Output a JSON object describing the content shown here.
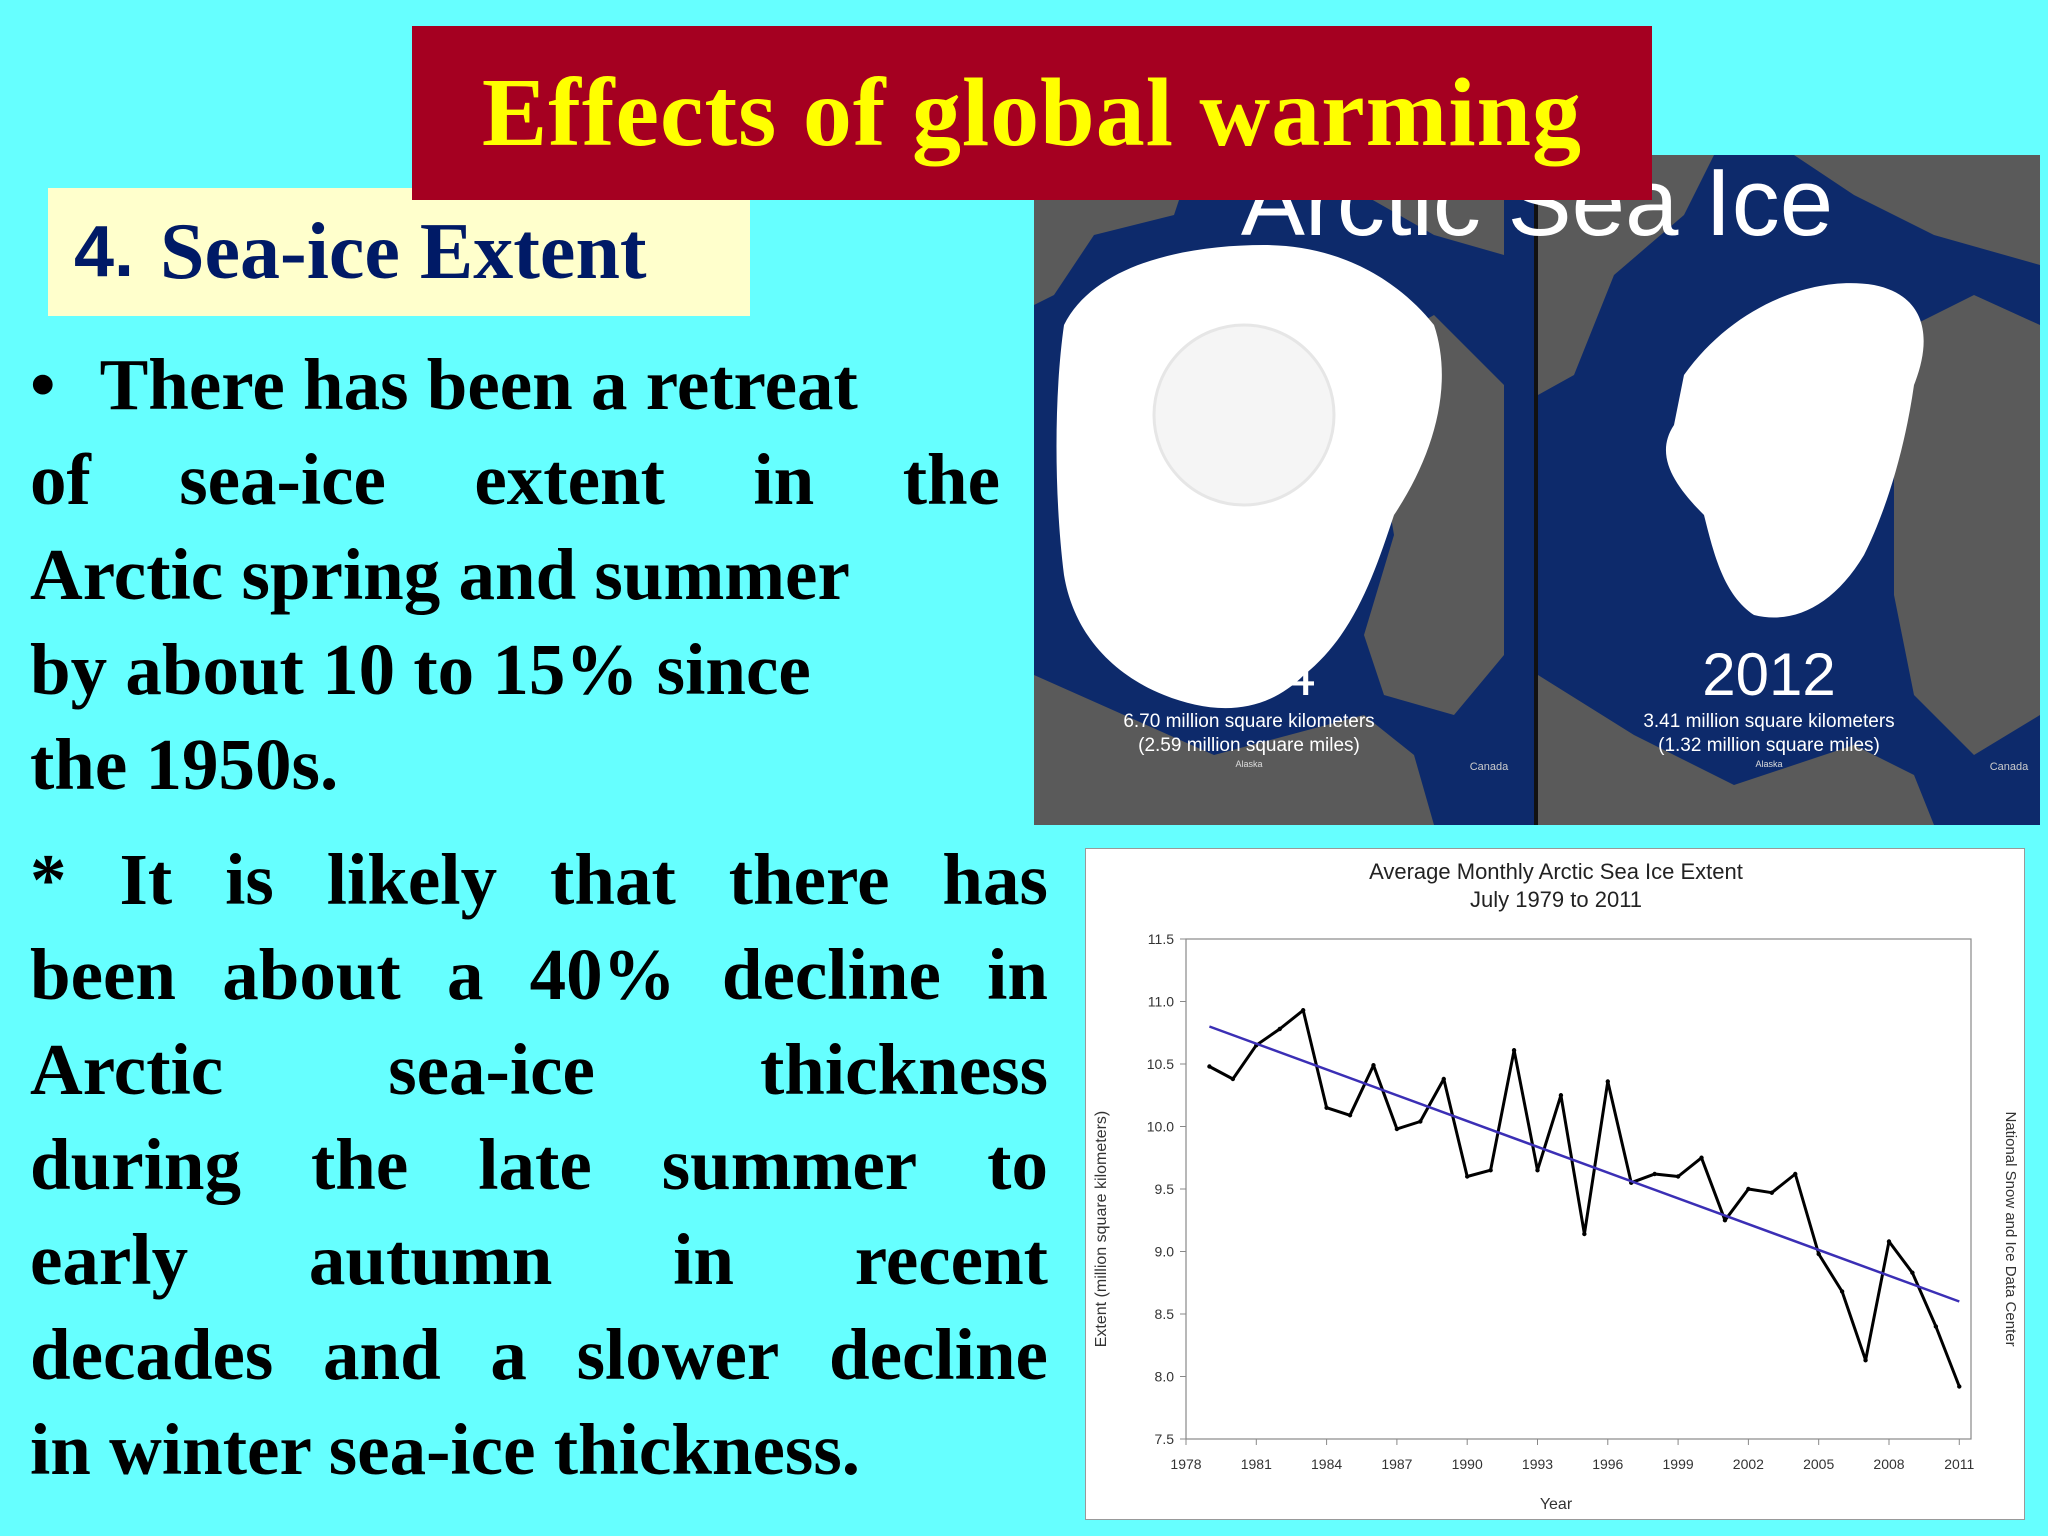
{
  "slide": {
    "title": "Effects of global warming",
    "section_number": "4.",
    "section_title": "Sea-ice Extent",
    "bullet_symbol": "•",
    "paragraph1_lines": [
      [
        "There has been a retreat"
      ],
      [
        "of",
        "sea-ice",
        "extent",
        "in",
        "the"
      ],
      [
        "Arctic spring and summer"
      ],
      [
        "by about 10 to 15% since"
      ],
      [
        "the 1950s."
      ]
    ],
    "paragraph2_lines": [
      [
        "*",
        "It",
        "is",
        "likely",
        "that",
        "there",
        "has"
      ],
      [
        "been",
        "about",
        "a",
        "40%",
        "decline",
        "in"
      ],
      [
        "Arctic",
        "sea-ice",
        "thickness"
      ],
      [
        "during",
        "the",
        "late",
        "summer",
        "to"
      ],
      [
        "early",
        "autumn",
        "in",
        "recent"
      ],
      [
        "decades",
        "and",
        "a",
        "slower",
        "decline"
      ],
      [
        "in winter sea-ice thickness."
      ]
    ]
  },
  "ice_image": {
    "heading": "Arctic Sea Ice",
    "left_year": "1984",
    "left_area_km": "6.70 million square kilometers",
    "left_area_mi": "(2.59 million square miles)",
    "right_year": "2012",
    "right_area_km": "3.41 million square kilometers",
    "right_area_mi": "(1.32 million square miles)",
    "left_label_small": "Alaska",
    "right_label_small": "Alaska",
    "canada_label": "Canada",
    "colors": {
      "ocean": "#0d2a6b",
      "land": "#5a5a5a",
      "ice": "#ffffff"
    }
  },
  "chart_data": {
    "type": "line",
    "title": "Average Monthly Arctic Sea Ice Extent",
    "subtitle": "July 1979 to 2011",
    "xlabel": "Year",
    "ylabel": "Extent (million square kilometers)",
    "right_label": "National Snow and Ice Data Center",
    "xlim": [
      1978,
      2011.5
    ],
    "ylim": [
      7.5,
      11.5
    ],
    "xticks": [
      1978,
      1981,
      1984,
      1987,
      1990,
      1993,
      1996,
      1999,
      2002,
      2005,
      2008,
      2011
    ],
    "yticks": [
      "7.5",
      "8.0",
      "8.5",
      "9.0",
      "9.5",
      "10.0",
      "10.5",
      "11.0",
      "11.5"
    ],
    "series": [
      {
        "color": "#000000",
        "x": [
          1979,
          1980,
          1981,
          1982,
          1983,
          1984,
          1985,
          1986,
          1987,
          1988,
          1989,
          1990,
          1991,
          1992,
          1993,
          1994,
          1995,
          1996,
          1997,
          1998,
          1999,
          2000,
          2001,
          2002,
          2003,
          2004,
          2005,
          2006,
          2007,
          2008,
          2009,
          2010,
          2011
        ],
        "y": [
          10.48,
          10.38,
          10.65,
          10.78,
          10.93,
          10.15,
          10.09,
          10.49,
          9.98,
          10.04,
          10.38,
          9.6,
          9.65,
          10.61,
          9.65,
          10.25,
          9.14,
          10.36,
          9.55,
          9.62,
          9.6,
          9.75,
          9.25,
          9.5,
          9.47,
          9.62,
          8.98,
          8.68,
          8.13,
          9.08,
          8.83,
          8.4,
          7.92
        ]
      },
      {
        "color": "#3b2fb5",
        "x": [
          1979,
          2011
        ],
        "y": [
          10.8,
          8.6
        ]
      }
    ],
    "grid": false
  }
}
